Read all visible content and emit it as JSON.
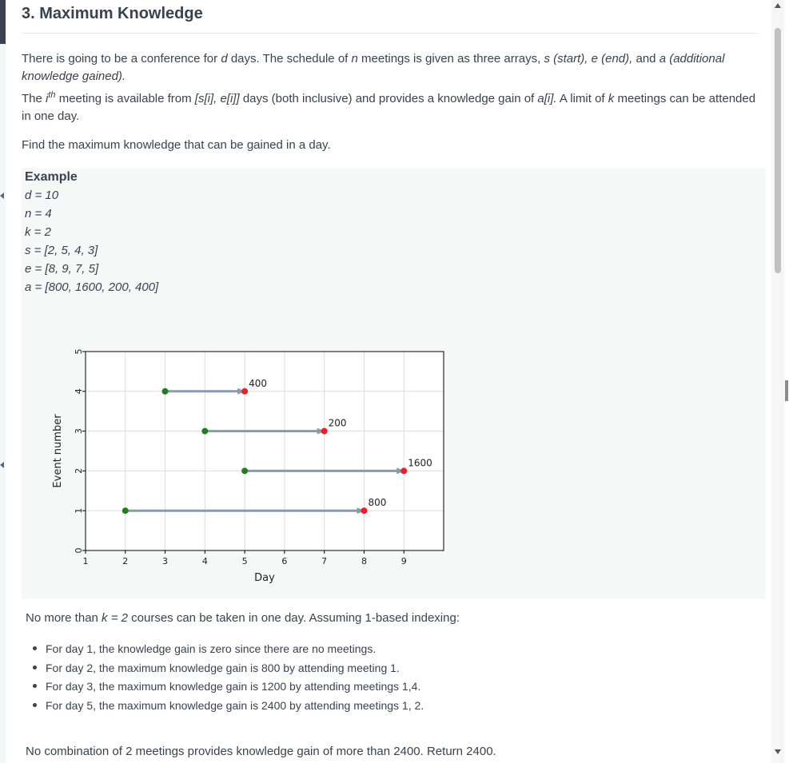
{
  "problem": {
    "title": "3. Maximum Knowledge",
    "intro": {
      "p1": "There is going to be a conference for ",
      "d": "d",
      "p2": " days. The schedule of ",
      "n": "n",
      "p3": " meetings is given as three arrays, ",
      "s_start": "s (start), e (end),",
      "p4": " and ",
      "a_add": "a (additional knowledge gained)."
    },
    "line2": {
      "p1": "The ",
      "i": "i",
      "th": "th",
      "p2": " meeting is available from ",
      "range": "[s[i], e[i]]",
      "p3": " days (both inclusive) and provides a knowledge gain of ",
      "ai": "a[i].",
      "p4": " A limit of ",
      "k": "k",
      "p5": " meetings can be attended in one day."
    },
    "task": "Find the maximum knowledge that can be gained in a day."
  },
  "example": {
    "heading": "Example",
    "lines": [
      "d = 10",
      "n = 4",
      "k = 2",
      "s = [2, 5, 4, 3]",
      "e = [8, 9, 7, 5]",
      "a = [800, 1600, 200, 400]"
    ]
  },
  "chart_data": {
    "type": "interval",
    "xlabel": "Day",
    "ylabel": "Event number",
    "xlim": [
      1,
      10
    ],
    "ylim": [
      0,
      5
    ],
    "xticks": [
      "1",
      "2",
      "3",
      "4",
      "5",
      "6",
      "7",
      "8",
      "9"
    ],
    "yticks": [
      "0",
      "1",
      "2",
      "3",
      "4",
      "5"
    ],
    "grid": true,
    "intervals": [
      {
        "event": 1,
        "start": 2,
        "end": 8,
        "value": "800"
      },
      {
        "event": 2,
        "start": 5,
        "end": 9,
        "value": "1600"
      },
      {
        "event": 3,
        "start": 4,
        "end": 7,
        "value": "200"
      },
      {
        "event": 4,
        "start": 3,
        "end": 5,
        "value": "400"
      }
    ],
    "colors": {
      "start": "#1f7f1f",
      "end": "#e8202a",
      "arrow": "#8a9aa8",
      "grid": "#dddddd"
    }
  },
  "explanation": {
    "lead": "No more than ",
    "k_expr": "k = 2",
    "rest": " courses can be taken in one day. Assuming 1-based indexing:",
    "bullets": [
      "For day 1, the knowledge gain is zero since there are no meetings.",
      "For day 2, the maximum knowledge gain is 800 by attending meeting 1.",
      "For day 3, the maximum knowledge gain is 1200 by attending meetings 1,4.",
      "For day 5, the maximum knowledge gain is 2400 by attending meetings 1, 2."
    ],
    "conclusion": "No combination of 2 meetings provides knowledge gain of more than 2400. Return 2400."
  }
}
